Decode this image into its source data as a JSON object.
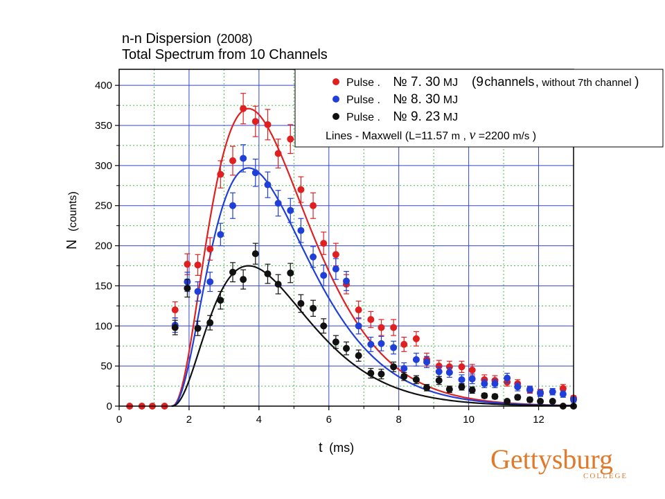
{
  "chart_data": {
    "type": "scatter",
    "title": "n-n Dispersion",
    "title_suffix": "(2008)",
    "subtitle": "Total Spectrum from 10 Channels",
    "xlabel": "t",
    "xlabel_unit": "(ms)",
    "ylabel": "N",
    "ylabel_unit": "(counts)",
    "xlim": [
      0,
      13
    ],
    "ylim": [
      0,
      420
    ],
    "xticks": [
      0,
      2,
      4,
      6,
      8,
      10,
      12
    ],
    "yticks": [
      0,
      50,
      100,
      150,
      200,
      250,
      300,
      350,
      400
    ],
    "grid": true,
    "legend_position": "top-right",
    "series": [
      {
        "name": "Pulse. № 7. 30MJ",
        "name_parts": [
          "Pulse",
          ".",
          "№ 7. 30",
          "MJ"
        ],
        "note": "(9channels, without 7th channel)",
        "note_parts": [
          "(9",
          "channels",
          ",",
          " without 7th channel",
          ")"
        ],
        "color": "#e02020",
        "x": [
          0.3,
          0.65,
          0.95,
          1.3,
          1.6,
          1.95,
          2.25,
          2.6,
          2.9,
          3.25,
          3.55,
          3.9,
          4.25,
          4.55,
          4.9,
          5.2,
          5.55,
          5.85,
          6.2,
          6.5,
          6.85,
          7.2,
          7.5,
          7.85,
          8.15,
          8.5,
          8.8,
          9.15,
          9.45,
          9.8,
          10.1,
          10.45,
          10.75,
          11.1,
          11.4,
          11.75,
          12.05,
          12.7,
          13.0
        ],
        "y": [
          0,
          0,
          0,
          0,
          120,
          177,
          176,
          196,
          289,
          306,
          371,
          355,
          351,
          315,
          333,
          270,
          250,
          203,
          189,
          152,
          120,
          108,
          98,
          98,
          77,
          84,
          58,
          50,
          49,
          49,
          45,
          33,
          32,
          30,
          28,
          20,
          17,
          22,
          10
        ],
        "err": [
          0,
          0,
          0,
          0,
          10,
          13,
          13,
          14,
          17,
          18,
          19,
          19,
          19,
          18,
          18,
          16,
          16,
          14,
          14,
          12,
          11,
          10,
          10,
          10,
          9,
          9,
          8,
          7,
          7,
          7,
          7,
          6,
          6,
          5,
          5,
          4,
          4,
          5,
          3
        ],
        "fit": {
          "model": "Maxwell",
          "t0": 1.5,
          "amplitude": 371,
          "peak": 3.7,
          "shape": 2.4
        }
      },
      {
        "name": "Pulse. № 8. 30MJ",
        "name_parts": [
          "Pulse",
          ".",
          "№ 8. 30",
          "MJ"
        ],
        "color": "#1f3fd8",
        "x": [
          1.6,
          1.95,
          2.25,
          2.6,
          2.9,
          3.25,
          3.55,
          3.9,
          4.25,
          4.55,
          4.9,
          5.2,
          5.55,
          5.85,
          6.2,
          6.5,
          6.85,
          7.2,
          7.5,
          7.85,
          8.15,
          8.5,
          8.8,
          9.15,
          9.45,
          9.8,
          10.1,
          10.45,
          10.75,
          11.1,
          11.4,
          11.75,
          12.05,
          12.4,
          12.7,
          13.0
        ],
        "y": [
          101,
          155,
          143,
          155,
          214,
          250,
          309,
          291,
          276,
          253,
          244,
          219,
          186,
          163,
          171,
          156,
          100,
          77,
          78,
          73,
          47,
          58,
          55,
          43,
          42,
          33,
          34,
          28,
          28,
          35,
          24,
          21,
          16,
          18,
          15,
          8
        ],
        "err": [
          9,
          12,
          12,
          12,
          14,
          16,
          17,
          17,
          16,
          16,
          15,
          15,
          13,
          13,
          13,
          12,
          10,
          9,
          9,
          8,
          7,
          8,
          7,
          6,
          6,
          6,
          6,
          5,
          5,
          6,
          5,
          4,
          4,
          4,
          4,
          3
        ],
        "fit": {
          "model": "Maxwell",
          "t0": 1.5,
          "amplitude": 297,
          "peak": 3.7,
          "shape": 2.4
        }
      },
      {
        "name": "Pulse. № 9. 23MJ",
        "name_parts": [
          "Pulse",
          ".",
          "№ 9. 23",
          "MJ"
        ],
        "color": "#111111",
        "x": [
          1.6,
          1.95,
          2.25,
          2.6,
          2.9,
          3.25,
          3.55,
          3.9,
          4.25,
          4.55,
          4.9,
          5.2,
          5.55,
          5.85,
          6.2,
          6.5,
          6.85,
          7.2,
          7.5,
          7.85,
          8.15,
          8.5,
          8.8,
          9.15,
          9.45,
          9.8,
          10.1,
          10.45,
          10.75,
          11.1,
          11.4,
          11.75,
          12.05,
          12.4,
          12.7,
          13.0
        ],
        "y": [
          98,
          147,
          97,
          104,
          132,
          167,
          158,
          190,
          165,
          152,
          166,
          128,
          122,
          100,
          80,
          72,
          63,
          41,
          40,
          49,
          37,
          33,
          23,
          32,
          21,
          24,
          20,
          13,
          12,
          6,
          11,
          8,
          6,
          6,
          0,
          0
        ],
        "err": [
          9,
          11,
          9,
          9,
          11,
          12,
          12,
          13,
          12,
          12,
          12,
          11,
          10,
          9,
          8,
          8,
          7,
          6,
          6,
          6,
          5,
          5,
          4,
          5,
          4,
          4,
          4,
          3,
          3,
          2,
          3,
          3,
          2,
          2,
          0,
          0
        ],
        "fit": {
          "model": "Maxwell",
          "t0": 1.5,
          "amplitude": 175,
          "peak": 3.7,
          "shape": 2.4
        }
      }
    ],
    "fit_label_parts": [
      "Lines",
      " - Maxwell (L=11.57",
      " m",
      ", ",
      "v",
      " =2200",
      " m/s",
      " )"
    ]
  },
  "logo": {
    "name": "Gettysburg",
    "sub": "COLLEGE",
    "color": "#e07a2a"
  }
}
